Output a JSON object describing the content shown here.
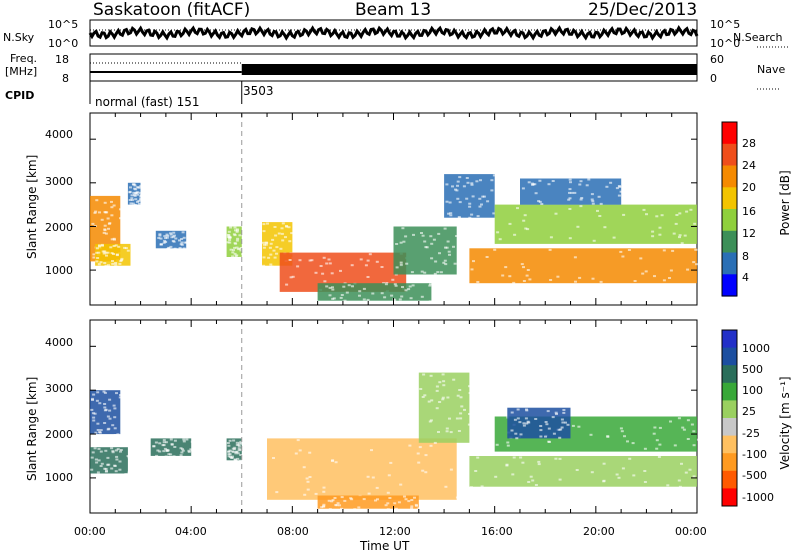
{
  "header": {
    "station": "Saskatoon (fitACF)",
    "beam": "Beam 13",
    "date": "25/Dec/2013"
  },
  "strips": {
    "nsky_label": "N.Sky",
    "nsky_ticks": [
      "10^5",
      "10^0"
    ],
    "nsearch_label": "N.Search",
    "nsearch_ticks": [
      "10^5",
      "10^0"
    ],
    "freq_label_1": "Freq.",
    "freq_label_2": "[MHz]",
    "freq_ticks": [
      "18",
      "8"
    ],
    "nave_label": "Nave",
    "nave_ticks": [
      "60",
      "0"
    ],
    "cpid_label": "CPID",
    "cpid_modes": [
      {
        "name": "normal (fast) 151",
        "start_hour": 0,
        "end_hour": 6
      },
      {
        "name": "3503",
        "start_hour": 6,
        "end_hour": 24
      }
    ]
  },
  "axes": {
    "ylabel": "Slant Range [km]",
    "yticks": [
      "4000",
      "3000",
      "2000",
      "1000"
    ],
    "xticks": [
      "00:00",
      "04:00",
      "08:00",
      "12:00",
      "16:00",
      "20:00",
      "00:00"
    ],
    "xlabel": "Time UT"
  },
  "colors": {
    "power": [
      "#0000ff",
      "#2a6fb5",
      "#3c8f58",
      "#8fcf3c",
      "#f3c400",
      "#f58a00",
      "#ef4e1b",
      "#ff0000"
    ],
    "velocity": [
      "#ff0000",
      "#ff5a00",
      "#ff9a20",
      "#ffc060",
      "#c8c8c8",
      "#9ad060",
      "#38a838",
      "#2a6e5a",
      "#1c4fa0",
      "#2230c8"
    ]
  },
  "chart_data": [
    {
      "type": "heatmap",
      "name": "Power",
      "colorbar_label": "Power [dB]",
      "colorbar_ticks": [
        "28",
        "24",
        "20",
        "16",
        "12",
        "8",
        "4"
      ],
      "xlabel": "",
      "ylabel": "Slant Range [km]",
      "xlim_hours": [
        0,
        24
      ],
      "ylim_km": [
        200,
        4600
      ],
      "regions": [
        {
          "t0": 0.0,
          "t1": 1.2,
          "r0": 1200,
          "r1": 2700,
          "v": 24
        },
        {
          "t0": 0.2,
          "t1": 1.6,
          "r0": 1100,
          "r1": 1600,
          "v": 18
        },
        {
          "t0": 1.5,
          "t1": 2.0,
          "r0": 2500,
          "r1": 3000,
          "v": 10
        },
        {
          "t0": 2.6,
          "t1": 3.8,
          "r0": 1500,
          "r1": 1900,
          "v": 8
        },
        {
          "t0": 5.4,
          "t1": 6.0,
          "r0": 1300,
          "r1": 2000,
          "v": 16
        },
        {
          "t0": 6.8,
          "t1": 8.0,
          "r0": 1100,
          "r1": 2100,
          "v": 20
        },
        {
          "t0": 7.5,
          "t1": 12.5,
          "r0": 500,
          "r1": 1400,
          "v": 26
        },
        {
          "t0": 9.0,
          "t1": 13.5,
          "r0": 300,
          "r1": 700,
          "v": 12
        },
        {
          "t0": 12.0,
          "t1": 14.5,
          "r0": 900,
          "r1": 2000,
          "v": 14
        },
        {
          "t0": 14.0,
          "t1": 16.0,
          "r0": 2200,
          "r1": 3200,
          "v": 8
        },
        {
          "t0": 15.0,
          "t1": 24.0,
          "r0": 700,
          "r1": 1500,
          "v": 24
        },
        {
          "t0": 16.0,
          "t1": 24.0,
          "r0": 1600,
          "r1": 2500,
          "v": 16
        },
        {
          "t0": 17.0,
          "t1": 21.0,
          "r0": 2500,
          "r1": 3100,
          "v": 10
        }
      ]
    },
    {
      "type": "heatmap",
      "name": "Velocity",
      "colorbar_label": "Velocity [m s⁻¹]",
      "colorbar_ticks": [
        "1000",
        "500",
        "100",
        "25",
        "-25",
        "-100",
        "-500",
        "-1000"
      ],
      "xlabel": "Time UT",
      "ylabel": "Slant Range [km]",
      "xlim_hours": [
        0,
        24
      ],
      "ylim_km": [
        200,
        4600
      ],
      "regions": [
        {
          "t0": 0.0,
          "t1": 1.2,
          "r0": 2000,
          "r1": 3000,
          "v": 600
        },
        {
          "t0": 0.0,
          "t1": 1.5,
          "r0": 1100,
          "r1": 1700,
          "v": 200
        },
        {
          "t0": 2.4,
          "t1": 4.0,
          "r0": 1500,
          "r1": 1900,
          "v": 200
        },
        {
          "t0": 5.4,
          "t1": 6.0,
          "r0": 1400,
          "r1": 1900,
          "v": 200
        },
        {
          "t0": 7.0,
          "t1": 14.5,
          "r0": 500,
          "r1": 1900,
          "v": -200
        },
        {
          "t0": 9.0,
          "t1": 13.0,
          "r0": 300,
          "r1": 600,
          "v": -600
        },
        {
          "t0": 13.0,
          "t1": 15.0,
          "r0": 1800,
          "r1": 3400,
          "v": 0
        },
        {
          "t0": 15.0,
          "t1": 24.0,
          "r0": 800,
          "r1": 1500,
          "v": 0
        },
        {
          "t0": 16.0,
          "t1": 24.0,
          "r0": 1600,
          "r1": 2400,
          "v": 60
        },
        {
          "t0": 16.5,
          "t1": 19.0,
          "r0": 1900,
          "r1": 2600,
          "v": 700
        }
      ]
    }
  ]
}
